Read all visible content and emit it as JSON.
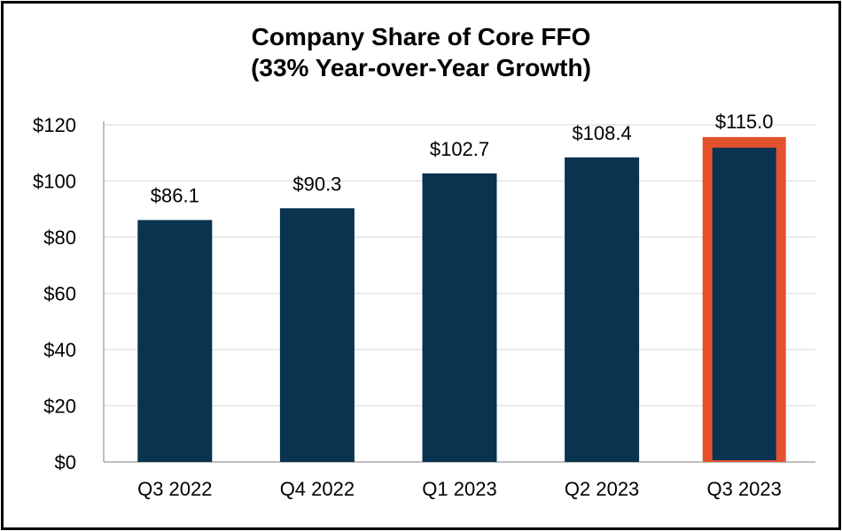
{
  "chart_data": {
    "type": "bar",
    "title": "Company Share of Core FFO",
    "subtitle": "(33% Year-over-Year Growth)",
    "categories": [
      "Q3 2022",
      "Q4 2022",
      "Q1 2023",
      "Q2 2023",
      "Q3 2023"
    ],
    "values": [
      86.1,
      90.3,
      102.7,
      108.4,
      115.0
    ],
    "data_labels": [
      "$86.1",
      "$90.3",
      "$102.7",
      "$108.4",
      "$115.0"
    ],
    "xlabel": "",
    "ylabel": "",
    "ylim": [
      0,
      120
    ],
    "yticks": [
      "$0",
      "$20",
      "$40",
      "$60",
      "$80",
      "$100",
      "$120"
    ],
    "grid": true,
    "highlighted_category": "Q3 2023",
    "colors": {
      "bar": "#0a3350",
      "highlight_outline": "#e4512f",
      "grid": "#e3e3e3"
    }
  }
}
